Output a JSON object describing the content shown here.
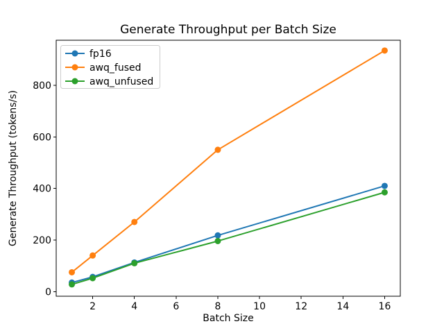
{
  "figure": {
    "background": "#ffffff"
  },
  "chart_data": {
    "type": "line",
    "title": "Generate Throughput per Batch Size",
    "xlabel": "Batch Size",
    "ylabel": "Generate Throughput (tokens/s)",
    "x": [
      1,
      2,
      4,
      8,
      16
    ],
    "series": [
      {
        "name": "fp16",
        "color": "#1f77b4",
        "marker": "o",
        "values": [
          35,
          57,
          113,
          218,
          410
        ]
      },
      {
        "name": "awq_fused",
        "color": "#ff7f0e",
        "marker": "o",
        "values": [
          75,
          140,
          270,
          550,
          935
        ]
      },
      {
        "name": "awq_unfused",
        "color": "#2ca02c",
        "marker": "o",
        "values": [
          28,
          52,
          110,
          196,
          385
        ]
      }
    ],
    "xticks": [
      2,
      4,
      6,
      8,
      10,
      12,
      14,
      16
    ],
    "yticks": [
      0,
      200,
      400,
      600,
      800
    ],
    "xlim": [
      0.25,
      16.75
    ],
    "ylim": [
      -18,
      975
    ],
    "legend": {
      "position": "upper left"
    },
    "grid": false,
    "axis_color": "#000000",
    "text_color": "#000000"
  }
}
